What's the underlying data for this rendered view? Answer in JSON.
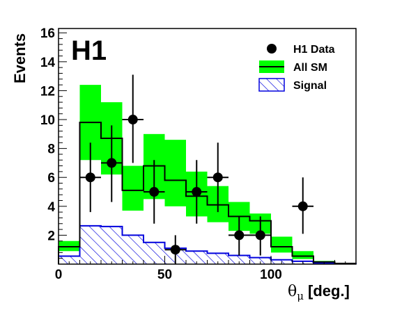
{
  "chart_data": {
    "type": "histogram",
    "experiment_label": "H1",
    "xlabel_symbol": "θ",
    "xlabel_sub": "μ",
    "xlabel_unit": "[deg.]",
    "ylabel": "Events",
    "xlim": [
      0,
      140
    ],
    "ylim": [
      0,
      16.3
    ],
    "xticks": [
      0,
      50,
      100
    ],
    "yticks": [
      2,
      4,
      6,
      8,
      10,
      12,
      14,
      16
    ],
    "bin_edges": [
      0,
      10,
      20,
      30,
      40,
      50,
      60,
      70,
      80,
      90,
      100,
      110,
      120,
      130,
      140
    ],
    "sm_central": [
      1.2,
      9.8,
      8.7,
      5.1,
      6.8,
      5.8,
      4.7,
      4.1,
      3.3,
      3.0,
      1.2,
      0.55,
      0.15,
      0.05
    ],
    "sm_band_low": [
      0.9,
      7.2,
      6.2,
      3.7,
      4.5,
      4.0,
      3.3,
      2.9,
      2.3,
      2.1,
      0.8,
      0.35,
      0.1,
      0.03
    ],
    "sm_band_high": [
      1.6,
      12.4,
      11.2,
      6.8,
      9.0,
      8.6,
      6.4,
      5.4,
      4.3,
      3.5,
      1.9,
      0.9,
      0.22,
      0.08
    ],
    "signal": [
      0.55,
      2.65,
      2.6,
      2.0,
      1.5,
      1.1,
      0.9,
      0.75,
      0.6,
      0.45,
      0.3,
      0.2,
      0.08,
      0.03
    ],
    "data_points": [
      {
        "x": 15,
        "y": 6,
        "ylow": 3.6,
        "yhigh": 8.4
      },
      {
        "x": 25,
        "y": 7,
        "ylow": 4.3,
        "yhigh": 9.6
      },
      {
        "x": 35,
        "y": 10,
        "ylow": 7.0,
        "yhigh": 13.1
      },
      {
        "x": 45,
        "y": 5,
        "ylow": 2.8,
        "yhigh": 7.2
      },
      {
        "x": 55,
        "y": 1,
        "ylow": 0,
        "yhigh": 2.0
      },
      {
        "x": 65,
        "y": 5,
        "ylow": 2.8,
        "yhigh": 7.2
      },
      {
        "x": 75,
        "y": 6,
        "ylow": 3.6,
        "yhigh": 8.4
      },
      {
        "x": 85,
        "y": 2,
        "ylow": 0.6,
        "yhigh": 3.3
      },
      {
        "x": 95,
        "y": 2,
        "ylow": 0.6,
        "yhigh": 3.3
      },
      {
        "x": 115,
        "y": 4,
        "ylow": 2.1,
        "yhigh": 6.0
      }
    ],
    "legend": [
      {
        "label": "H1 Data",
        "kind": "marker"
      },
      {
        "label": "All SM",
        "kind": "band"
      },
      {
        "label": "Signal",
        "kind": "hatch"
      }
    ],
    "legend_position": "top-right",
    "colors": {
      "sm_band": "#00ff00",
      "sm_line": "#000000",
      "signal": "#0000dd",
      "data": "#000000"
    }
  }
}
